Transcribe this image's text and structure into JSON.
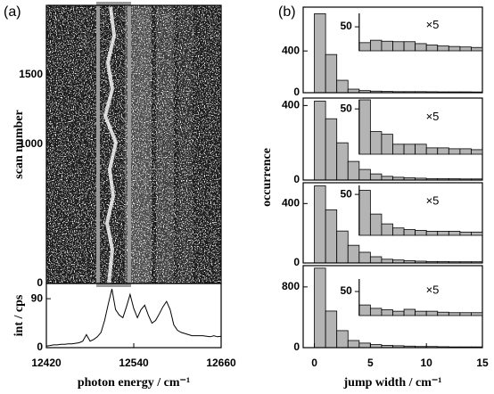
{
  "chart_data": [
    {
      "type": "image",
      "label": "(a)",
      "ylabel": "scan number",
      "xlim": [
        12420,
        12660
      ],
      "ylim": [
        0,
        2000
      ],
      "yticks": [
        0,
        1000,
        1500
      ]
    },
    {
      "type": "line",
      "ylabel": "int / cps",
      "xlabel": "photon energy / cm⁻¹",
      "color": "#000000",
      "x": [
        12420,
        12425,
        12430,
        12435,
        12440,
        12445,
        12450,
        12455,
        12460,
        12465,
        12470,
        12475,
        12480,
        12485,
        12490,
        12495,
        12500,
        12505,
        12510,
        12515,
        12520,
        12525,
        12530,
        12535,
        12540,
        12545,
        12550,
        12555,
        12560,
        12565,
        12570,
        12575,
        12580,
        12585,
        12590,
        12595,
        12600,
        12605,
        12610,
        12615,
        12620,
        12625,
        12630,
        12635,
        12640,
        12645,
        12650,
        12655,
        12660
      ],
      "values": [
        3,
        4,
        5,
        5,
        6,
        6,
        7,
        7,
        8,
        9,
        12,
        24,
        12,
        15,
        20,
        28,
        50,
        80,
        108,
        70,
        60,
        55,
        75,
        98,
        72,
        55,
        70,
        78,
        60,
        45,
        50,
        62,
        75,
        85,
        70,
        42,
        32,
        28,
        26,
        24,
        22,
        22,
        22,
        22,
        21,
        20,
        22,
        20,
        21
      ],
      "xlim": [
        12420,
        12660
      ],
      "ylim": [
        0,
        118
      ],
      "xticks": [
        12420,
        12540,
        12660
      ],
      "yticks": [
        0,
        90
      ]
    },
    {
      "type": "histogram",
      "label": "(b)",
      "ylabel": "occurrence",
      "color": "#b4b4b4",
      "bins": [
        0,
        1,
        2,
        3,
        4,
        5,
        6,
        7,
        8,
        9,
        10,
        11,
        12,
        13,
        14,
        15
      ],
      "values": [
        757,
        366,
        119,
        34,
        20,
        15,
        12,
        10,
        10,
        10,
        9,
        8,
        8,
        8,
        7
      ],
      "xlim": [
        -1,
        15
      ],
      "ylim": [
        0,
        820
      ],
      "yticks": [
        0,
        400
      ],
      "inset": {
        "annotation": "×5",
        "bins": [
          4,
          5,
          6,
          7,
          8,
          9,
          10,
          11,
          12,
          13,
          14,
          15
        ],
        "values": [
          17,
          22,
          20,
          19,
          19,
          15,
          12,
          10,
          9,
          8,
          7
        ],
        "ylim": [
          0,
          78
        ],
        "yticks": [
          50
        ]
      }
    },
    {
      "type": "histogram",
      "color": "#b4b4b4",
      "bins": [
        0,
        1,
        2,
        3,
        4,
        5,
        6,
        7,
        8,
        9,
        10,
        11,
        12,
        13,
        14,
        15
      ],
      "values": [
        424,
        329,
        200,
        100,
        57,
        33,
        20,
        15,
        12,
        10,
        8,
        8,
        7,
        6,
        6
      ],
      "xlim": [
        -1,
        15
      ],
      "ylim": [
        0,
        440
      ],
      "yticks": [
        0,
        400
      ],
      "inset": {
        "annotation": "×5",
        "bins": [
          4,
          5,
          6,
          7,
          8,
          9,
          10,
          11,
          12,
          13,
          14,
          15
        ],
        "values": [
          60,
          25,
          22,
          11,
          11,
          11,
          7,
          7,
          6,
          6,
          5
        ],
        "ylim": [
          0,
          60
        ],
        "yticks": [
          50
        ]
      }
    },
    {
      "type": "histogram",
      "color": "#b4b4b4",
      "bins": [
        0,
        1,
        2,
        3,
        4,
        5,
        6,
        7,
        8,
        9,
        10,
        11,
        12,
        13,
        14,
        15
      ],
      "values": [
        519,
        358,
        215,
        119,
        72,
        42,
        25,
        20,
        15,
        12,
        10,
        10,
        8,
        8,
        8
      ],
      "xlim": [
        -1,
        15
      ],
      "ylim": [
        0,
        540
      ],
      "yticks": [
        0,
        400
      ],
      "inset": {
        "annotation": "×5",
        "bins": [
          4,
          5,
          6,
          7,
          8,
          9,
          10,
          11,
          12,
          13,
          14,
          15
        ],
        "values": [
          55,
          26,
          14,
          9,
          7,
          6,
          5,
          5,
          5,
          4,
          4
        ],
        "ylim": [
          0,
          61
        ],
        "yticks": [
          50
        ]
      }
    },
    {
      "type": "histogram",
      "xlabel": "jump width / cm⁻¹",
      "color": "#b4b4b4",
      "bins": [
        0,
        1,
        2,
        3,
        4,
        5,
        6,
        7,
        8,
        9,
        10,
        11,
        12,
        13,
        14,
        15
      ],
      "values": [
        1047,
        482,
        224,
        94,
        60,
        40,
        30,
        25,
        20,
        15,
        15,
        12,
        10,
        10,
        10
      ],
      "xlim": [
        -1,
        15
      ],
      "ylim": [
        0,
        1080
      ],
      "yticks": [
        0,
        800
      ],
      "xticks": [
        0,
        5,
        10,
        15
      ],
      "inset": {
        "annotation": "×5",
        "bins": [
          4,
          5,
          6,
          7,
          8,
          9,
          10,
          11,
          12,
          13,
          14,
          15
        ],
        "values": [
          22,
          15,
          12,
          9,
          13,
          9,
          9,
          7,
          6,
          6,
          6
        ],
        "ylim": [
          0,
          76
        ],
        "yticks": [
          50
        ]
      }
    }
  ]
}
